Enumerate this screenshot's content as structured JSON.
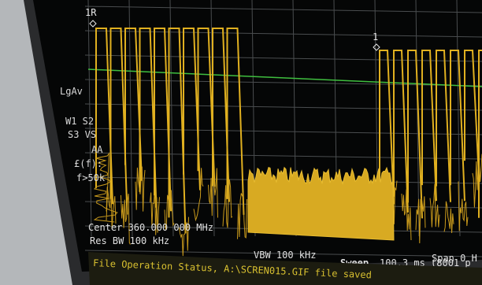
{
  "markers": {
    "m1": "1R",
    "m2": "1"
  },
  "side_labels": [
    "LgAv",
    "W1  S2",
    "S3  VS",
    "AA",
    "£(f):",
    "f>50k"
  ],
  "footer": {
    "center": "Center 360.000 000 MHz",
    "res_bw": "Res BW 100 kHz",
    "vbw": "VBW 100 kHz",
    "sweep_label": "Sweep",
    "sweep_value": "100.3 ms (8001 p",
    "span": "Span 0 H"
  },
  "status": "File Operation Status, A:\\SCREN015.GIF file saved"
}
